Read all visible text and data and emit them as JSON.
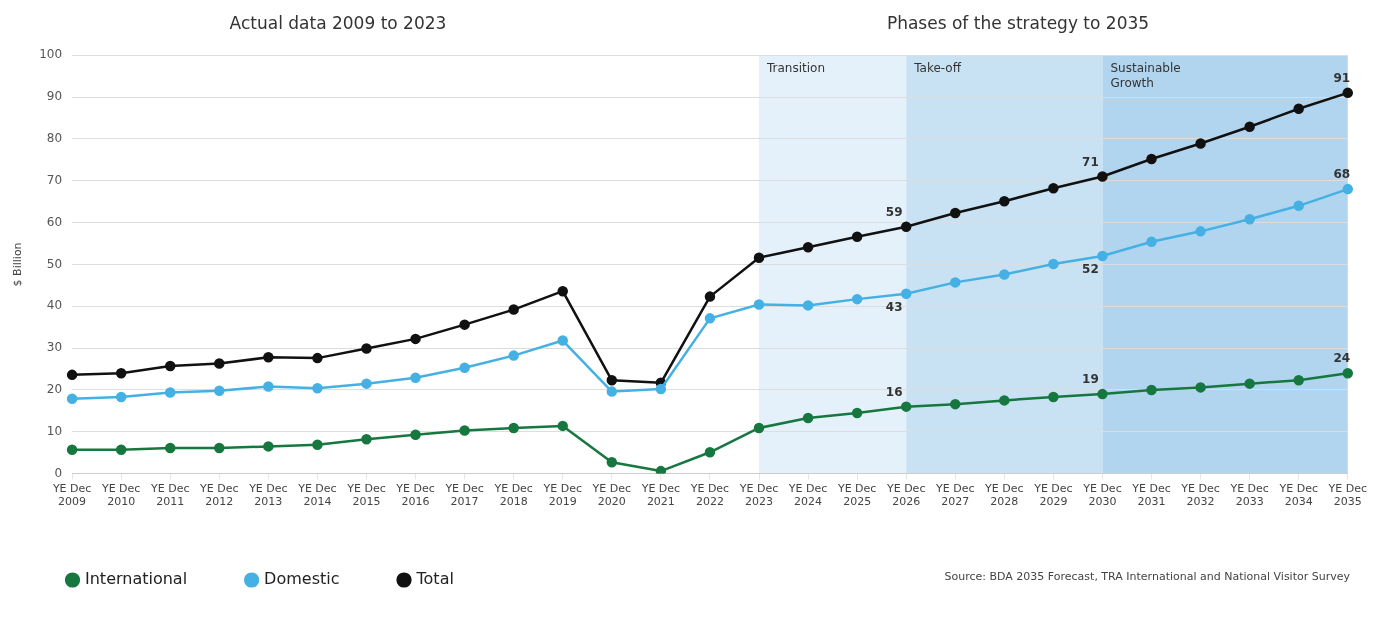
{
  "chart_data": {
    "type": "line",
    "title": "Actual data 2009 to 2023",
    "subtitle": "Phases of the strategy to 2035",
    "ylabel": "$ Billion",
    "categories": [
      "YE Dec 2009",
      "YE Dec 2010",
      "YE Dec 2011",
      "YE Dec 2012",
      "YE Dec 2013",
      "YE Dec 2014",
      "YE Dec 2015",
      "YE Dec 2016",
      "YE Dec 2017",
      "YE Dec 2018",
      "YE Dec 2019",
      "YE Dec 2020",
      "YE Dec 2021",
      "YE Dec 2022",
      "YE Dec 2023",
      "YE Dec 2024",
      "YE Dec 2025",
      "YE Dec 2026",
      "YE Dec 2027",
      "YE Dec 2028",
      "YE Dec 2029",
      "YE Dec 2030",
      "YE Dec 2031",
      "YE Dec 2032",
      "YE Dec 2033",
      "YE Dec 2034",
      "YE Dec 2035"
    ],
    "series": [
      {
        "name": "International",
        "color": "#16773f",
        "values": [
          5.7,
          5.7,
          6.1,
          6.1,
          6.5,
          6.9,
          8.2,
          9.3,
          10.3,
          10.9,
          11.4,
          2.7,
          0.6,
          5.1,
          10.9,
          13.3,
          14.5,
          16,
          16.6,
          17.5,
          18.3,
          19,
          20,
          20.6,
          21.5,
          22.3,
          24
        ],
        "value_labels": [
          null,
          null,
          null,
          null,
          null,
          null,
          null,
          null,
          null,
          null,
          null,
          null,
          null,
          null,
          null,
          null,
          null,
          "16",
          null,
          null,
          null,
          "19",
          null,
          null,
          null,
          null,
          "24"
        ]
      },
      {
        "name": "Domestic",
        "color": "#45b0e3",
        "values": [
          17.9,
          18.3,
          19.4,
          19.8,
          20.8,
          20.4,
          21.5,
          22.9,
          25.3,
          28.2,
          31.8,
          19.6,
          20.2,
          37.1,
          40.4,
          40.2,
          41.7,
          43,
          45.7,
          47.6,
          50.1,
          52,
          55.4,
          57.9,
          60.8,
          64,
          68
        ],
        "value_labels": [
          null,
          null,
          null,
          null,
          null,
          null,
          null,
          null,
          null,
          null,
          null,
          null,
          null,
          null,
          null,
          null,
          null,
          "43",
          null,
          null,
          null,
          "52",
          null,
          null,
          null,
          null,
          "68"
        ]
      },
      {
        "name": "Total",
        "color": "#111111",
        "values": [
          23.6,
          24,
          25.7,
          26.3,
          27.8,
          27.6,
          29.9,
          32.2,
          35.6,
          39.2,
          43.6,
          22.3,
          21.7,
          42.3,
          51.6,
          54.1,
          56.6,
          59,
          62.3,
          65.1,
          68.2,
          71,
          75.2,
          78.9,
          82.9,
          87.2,
          91
        ],
        "value_labels": [
          null,
          null,
          null,
          null,
          null,
          null,
          null,
          null,
          null,
          null,
          null,
          null,
          null,
          null,
          null,
          null,
          null,
          "59",
          null,
          null,
          null,
          "71",
          null,
          null,
          null,
          null,
          "91"
        ]
      }
    ],
    "ylim": [
      0,
      100
    ],
    "yticks": [
      0,
      10,
      20,
      30,
      40,
      50,
      60,
      70,
      80,
      90,
      100
    ],
    "grid": "y",
    "legend": "bottom left",
    "marker": "circle",
    "line_style": "solid",
    "bands": [
      {
        "axis": "x",
        "from": "YE Dec 2023",
        "to": "YE Dec 2026",
        "label": "Transition",
        "color": "#e4f1fa"
      },
      {
        "axis": "x",
        "from": "YE Dec 2026",
        "to": "YE Dec 2030",
        "label": "Take-off",
        "color": "#c8e2f4"
      },
      {
        "axis": "x",
        "from": "YE Dec 2030",
        "to": "YE Dec 2035",
        "label": "Sustainable Growth",
        "color": "#b2d5ef"
      }
    ],
    "annotations": [
      "Source: BDA 2035 Forecast, TRA International and National Visitor Survey"
    ]
  }
}
